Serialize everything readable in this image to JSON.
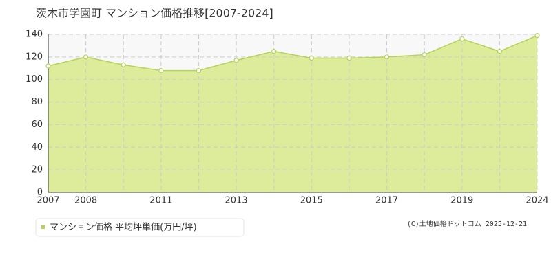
{
  "chart_data": {
    "type": "area",
    "title": "茨木市学園町 マンション価格推移[2007-2024]",
    "categories": [
      "2007",
      "2008",
      null,
      "2011",
      null,
      "2013",
      null,
      "2015",
      null,
      "2017",
      null,
      "2019",
      null,
      "2024"
    ],
    "series": [
      {
        "name": "マンション価格 平均坪単価(万円/坪)",
        "color": "#b5d35a",
        "fill": "#dcec9a",
        "values": [
          112,
          120,
          113,
          108,
          108,
          117,
          125,
          119,
          119,
          120,
          122,
          136,
          125,
          139
        ]
      }
    ],
    "ylim": [
      0,
      140
    ],
    "yticks": [
      0,
      20,
      40,
      60,
      80,
      100,
      120,
      140
    ],
    "grid": true,
    "copyright": "(C)土地価格ドットコム 2025-12-21"
  }
}
